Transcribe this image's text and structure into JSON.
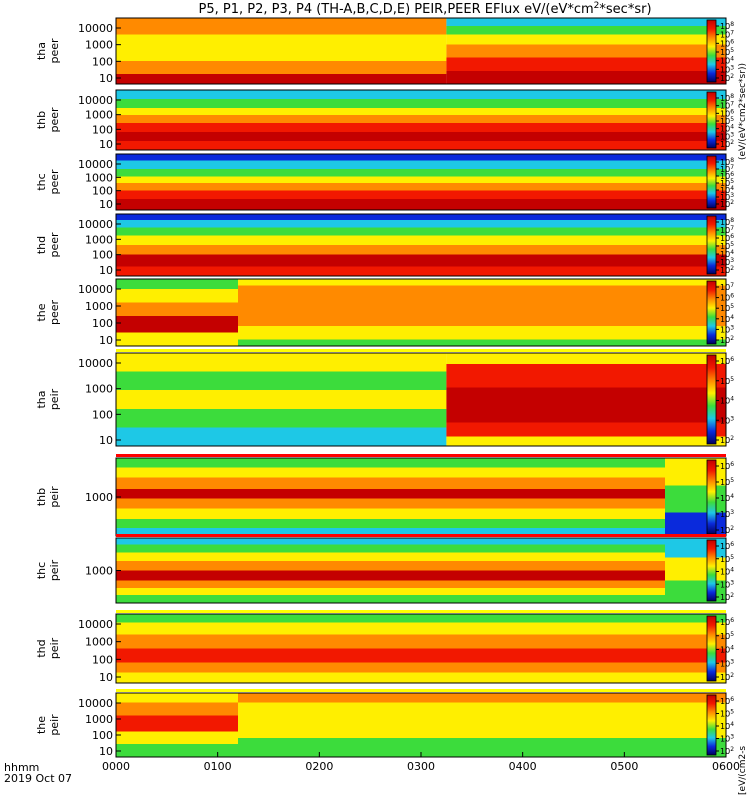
{
  "title_parts": {
    "before": "P5, P1, P2, P3, P4 (TH-A,B,C,D,E) PEIR,PEER EFlux eV/(eV*cm",
    "sup": "2",
    "after": "*sec*sr)"
  },
  "time_label": "hhmm",
  "date_label": "2019 Oct 07",
  "colorbar_unit_lower": "[eV/(cm2-s",
  "colorbar_unit_upper": "(eV/(eV*cm2*sec*sr))",
  "colorbar_tick_text": "10",
  "colors": {
    "deep_red": "#c40000",
    "red": "#f21800",
    "orange": "#ff8a00",
    "yellow": "#ffef00",
    "green": "#3cdc3c",
    "cyan": "#1ec8e6",
    "blue": "#0a2adc",
    "navy": "#000060",
    "flag_red": "#ff0000",
    "flag_yellow": "#ffff00"
  },
  "chart_data": {
    "type": "heatmap",
    "x_axis": {
      "label": "hhmm",
      "ticks": [
        "0000",
        "0100",
        "0200",
        "0300",
        "0400",
        "0500",
        "0600"
      ],
      "range_hours": [
        0,
        6
      ]
    },
    "panels": [
      {
        "label1": "tha",
        "label2": "peer",
        "yticks": [
          "10",
          "100",
          "1000",
          "10000"
        ],
        "cbar_ticks": [
          "8",
          "7",
          "6",
          "5",
          "4",
          "3",
          "2"
        ],
        "profile": [
          {
            "start": 0.0,
            "bands": [
              [
                "#ff8a00",
                0.25
              ],
              [
                "#ffef00",
                0.2
              ],
              [
                "#ffef00",
                0.2
              ],
              [
                "#ff8a00",
                0.2
              ],
              [
                "#c40000",
                0.15
              ]
            ]
          },
          {
            "start": 3.25,
            "bands": [
              [
                "#1ec8e6",
                0.12
              ],
              [
                "#3cdc3c",
                0.13
              ],
              [
                "#ffef00",
                0.15
              ],
              [
                "#ff8a00",
                0.2
              ],
              [
                "#f21800",
                0.2
              ],
              [
                "#c40000",
                0.2
              ]
            ]
          }
        ]
      },
      {
        "label1": "thb",
        "label2": "peer",
        "yticks": [
          "10",
          "100",
          "1000",
          "10000"
        ],
        "cbar_ticks": [
          "8",
          "7",
          "6",
          "5",
          "4",
          "3",
          "2"
        ],
        "profile": [
          {
            "start": 0.0,
            "bands": [
              [
                "#1ec8e6",
                0.15
              ],
              [
                "#3cdc3c",
                0.15
              ],
              [
                "#ffef00",
                0.12
              ],
              [
                "#ff8a00",
                0.13
              ],
              [
                "#f21800",
                0.15
              ],
              [
                "#c40000",
                0.15
              ],
              [
                "#f21800",
                0.15
              ]
            ]
          }
        ]
      },
      {
        "label1": "thc",
        "label2": "peer",
        "yticks": [
          "10",
          "100",
          "1000",
          "10000"
        ],
        "cbar_ticks": [
          "8",
          "7",
          "6",
          "5",
          "4",
          "3",
          "2"
        ],
        "profile": [
          {
            "start": 0.0,
            "bands": [
              [
                "#0a2adc",
                0.12
              ],
              [
                "#1ec8e6",
                0.15
              ],
              [
                "#3cdc3c",
                0.13
              ],
              [
                "#ffef00",
                0.12
              ],
              [
                "#ff8a00",
                0.13
              ],
              [
                "#f21800",
                0.15
              ],
              [
                "#c40000",
                0.2
              ]
            ]
          }
        ]
      },
      {
        "label1": "thd",
        "label2": "peer",
        "yticks": [
          "10",
          "100",
          "1000",
          "10000"
        ],
        "cbar_ticks": [
          "8",
          "7",
          "6",
          "5",
          "4",
          "3",
          "2"
        ],
        "profile": [
          {
            "start": 0.0,
            "bands": [
              [
                "#0a2adc",
                0.1
              ],
              [
                "#1ec8e6",
                0.12
              ],
              [
                "#3cdc3c",
                0.13
              ],
              [
                "#ffef00",
                0.15
              ],
              [
                "#ff8a00",
                0.15
              ],
              [
                "#c40000",
                0.2
              ],
              [
                "#f21800",
                0.15
              ]
            ]
          }
        ]
      },
      {
        "label1": "the",
        "label2": "peer",
        "yticks": [
          "10",
          "100",
          "1000",
          "10000"
        ],
        "cbar_ticks": [
          "7",
          "6",
          "5",
          "4",
          "3",
          "2"
        ],
        "profile": [
          {
            "start": 0.0,
            "bands": [
              [
                "#3cdc3c",
                0.15
              ],
              [
                "#ffef00",
                0.2
              ],
              [
                "#ff8a00",
                0.2
              ],
              [
                "#c40000",
                0.25
              ],
              [
                "#ffef00",
                0.2
              ]
            ]
          },
          {
            "start": 1.2,
            "bands": [
              [
                "#ffef00",
                0.1
              ],
              [
                "#ff8a00",
                0.3
              ],
              [
                "#ff8a00",
                0.3
              ],
              [
                "#ffef00",
                0.2
              ],
              [
                "#3cdc3c",
                0.1
              ]
            ]
          }
        ]
      },
      {
        "label1": "tha",
        "label2": "peir",
        "yticks": [
          "10",
          "100",
          "1000",
          "10000"
        ],
        "cbar_ticks": [
          "6",
          "5",
          "4",
          "3",
          "2"
        ],
        "profile": [
          {
            "start": 0.0,
            "bands": [
              [
                "#ffef00",
                0.2
              ],
              [
                "#3cdc3c",
                0.2
              ],
              [
                "#ffef00",
                0.2
              ],
              [
                "#3cdc3c",
                0.2
              ],
              [
                "#1ec8e6",
                0.2
              ]
            ]
          },
          {
            "start": 3.25,
            "bands": [
              [
                "#ffef00",
                0.12
              ],
              [
                "#f21800",
                0.25
              ],
              [
                "#c40000",
                0.38
              ],
              [
                "#f21800",
                0.15
              ],
              [
                "#ffef00",
                0.1
              ]
            ]
          }
        ]
      },
      {
        "label1": "thb",
        "label2": "peir",
        "yticks": [
          "1000"
        ],
        "cbar_ticks": [
          "6",
          "5",
          "4",
          "3",
          "2"
        ],
        "profile": [
          {
            "start": 0.0,
            "bands": [
              [
                "#3cdc3c",
                0.12
              ],
              [
                "#ffef00",
                0.13
              ],
              [
                "#ff8a00",
                0.15
              ],
              [
                "#c40000",
                0.12
              ],
              [
                "#ff8a00",
                0.13
              ],
              [
                "#ffef00",
                0.13
              ],
              [
                "#3cdc3c",
                0.12
              ],
              [
                "#1ec8e6",
                0.1
              ]
            ]
          },
          {
            "start": 5.4,
            "bands": [
              [
                "#ffef00",
                0.35
              ],
              [
                "#3cdc3c",
                0.35
              ],
              [
                "#0a2adc",
                0.3
              ]
            ]
          }
        ]
      },
      {
        "label1": "thc",
        "label2": "peir",
        "yticks": [
          "1000"
        ],
        "cbar_ticks": [
          "6",
          "5",
          "4",
          "3",
          "2"
        ],
        "profile": [
          {
            "start": 0.0,
            "bands": [
              [
                "#1ec8e6",
                0.1
              ],
              [
                "#3cdc3c",
                0.12
              ],
              [
                "#ffef00",
                0.13
              ],
              [
                "#ff8a00",
                0.15
              ],
              [
                "#c40000",
                0.15
              ],
              [
                "#ff8a00",
                0.12
              ],
              [
                "#ffef00",
                0.11
              ],
              [
                "#3cdc3c",
                0.12
              ]
            ]
          },
          {
            "start": 5.4,
            "bands": [
              [
                "#1ec8e6",
                0.3
              ],
              [
                "#ffef00",
                0.35
              ],
              [
                "#3cdc3c",
                0.35
              ]
            ]
          }
        ]
      },
      {
        "label1": "thd",
        "label2": "peir",
        "yticks": [
          "10",
          "100",
          "1000",
          "10000"
        ],
        "cbar_ticks": [
          "6",
          "5",
          "4",
          "3",
          "2"
        ],
        "profile": [
          {
            "start": 0.0,
            "bands": [
              [
                "#3cdc3c",
                0.12
              ],
              [
                "#ffef00",
                0.18
              ],
              [
                "#ff8a00",
                0.2
              ],
              [
                "#f21800",
                0.2
              ],
              [
                "#ff8a00",
                0.15
              ],
              [
                "#ffef00",
                0.15
              ]
            ]
          }
        ]
      },
      {
        "label1": "the",
        "label2": "peir",
        "yticks": [
          "10",
          "100",
          "1000",
          "10000"
        ],
        "cbar_ticks": [
          "6",
          "5",
          "4",
          "3",
          "2"
        ],
        "profile": [
          {
            "start": 0.0,
            "bands": [
              [
                "#ffef00",
                0.15
              ],
              [
                "#ff8a00",
                0.2
              ],
              [
                "#f21800",
                0.25
              ],
              [
                "#ffef00",
                0.2
              ],
              [
                "#3cdc3c",
                0.2
              ]
            ]
          },
          {
            "start": 1.2,
            "bands": [
              [
                "#ff8a00",
                0.15
              ],
              [
                "#ffef00",
                0.35
              ],
              [
                "#ffef00",
                0.2
              ],
              [
                "#3cdc3c",
                0.3
              ]
            ]
          }
        ]
      }
    ]
  }
}
